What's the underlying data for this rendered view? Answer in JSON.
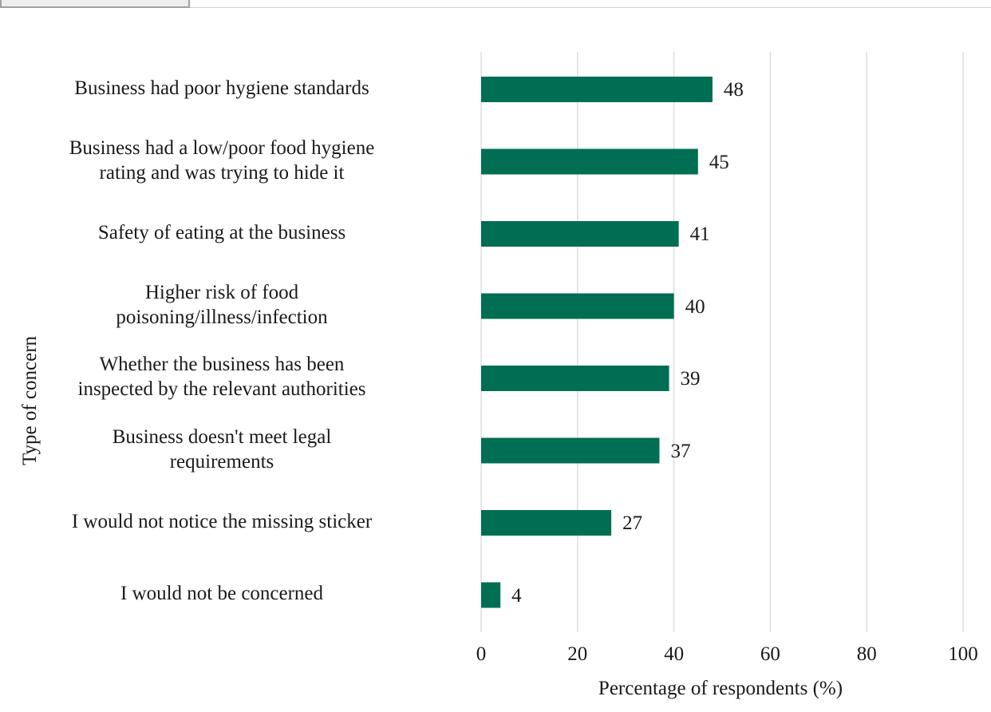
{
  "chart_data": {
    "type": "bar",
    "orientation": "horizontal",
    "categories": [
      "Business had poor hygiene standards",
      "Business had a low/poor food hygiene rating and was trying to hide it",
      "Safety of eating at the business",
      "Higher risk of food poisoning/illness/infection",
      "Whether the business has been inspected by the relevant authorities",
      "Business doesn't meet legal requirements",
      "I would not notice the missing sticker",
      "I would not be concerned"
    ],
    "category_lines": [
      [
        "Business had poor hygiene standards"
      ],
      [
        "Business had a low/poor food hygiene",
        "rating and was trying to hide it"
      ],
      [
        "Safety of eating at the business"
      ],
      [
        "Higher risk of food",
        "poisoning/illness/infection"
      ],
      [
        "Whether the business has been",
        "inspected by the relevant authorities"
      ],
      [
        "Business doesn't meet legal",
        "requirements"
      ],
      [
        "I would not notice the missing sticker"
      ],
      [
        "I would not be concerned"
      ]
    ],
    "values": [
      48,
      45,
      41,
      40,
      39,
      37,
      27,
      4
    ],
    "xlabel": "Percentage of respondents (%)",
    "ylabel": "Type of concern",
    "xlim": [
      0,
      100
    ],
    "xticks": [
      "0",
      "20",
      "40",
      "60",
      "80",
      "100"
    ],
    "grid": "vertical",
    "bar_color": "#006e52",
    "grid_color": "#d9d9d9"
  }
}
